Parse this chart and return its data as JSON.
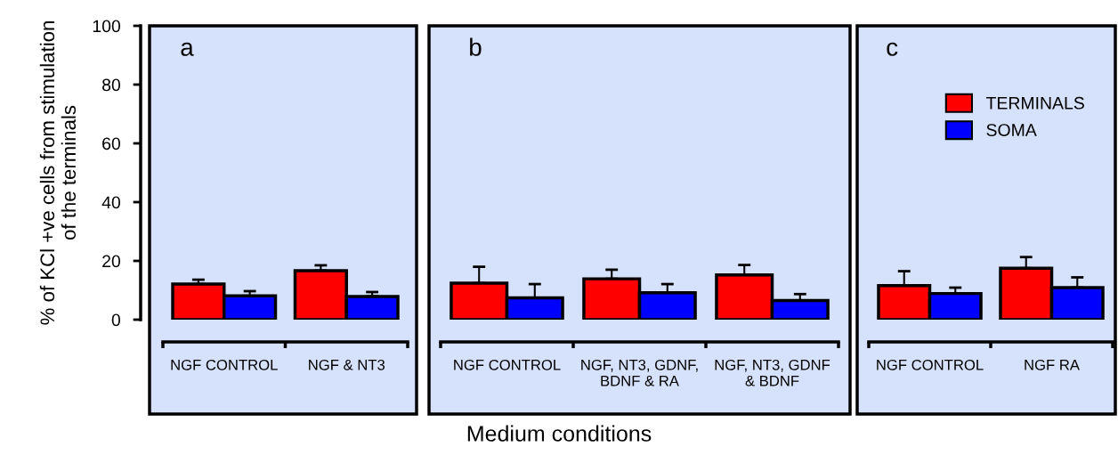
{
  "chart_data": [
    {
      "type": "bar",
      "ylabel": "% of KCl +ve cells from stimulation\nof the terminals",
      "categories": [
        "NGF CONTROL",
        "NGF & NT3"
      ],
      "ylim": [
        0,
        100
      ],
      "yticks": [
        0,
        20,
        40,
        60,
        80,
        100
      ],
      "annotations": [
        "a"
      ],
      "series": [
        {
          "color": "#ff0000",
          "values": [
            12.1,
            16.7
          ],
          "errors": [
            [
              12.1,
              13.6
            ],
            [
              16.7,
              18.5
            ]
          ]
        },
        {
          "color": "#0000ff",
          "values": [
            8.1,
            7.9
          ],
          "errors": [
            [
              8.1,
              9.7
            ],
            [
              7.9,
              9.4
            ]
          ]
        }
      ]
    },
    {
      "type": "bar",
      "xlabel": "Medium conditions",
      "categories": [
        "NGF CONTROL",
        "NGF, NT3, GDNF,\nBDNF & RA",
        "NGF, NT3, GDNF\n& BDNF"
      ],
      "ylim": [
        0,
        100
      ],
      "tick_labels": "x",
      "annotations": [
        "b"
      ],
      "series": [
        {
          "color": "#ff0000",
          "values": [
            12.4,
            13.9,
            15.2
          ],
          "errors": [
            [
              12.4,
              18.0
            ],
            [
              13.9,
              17.0
            ],
            [
              15.2,
              18.6
            ]
          ]
        },
        {
          "color": "#0000ff",
          "values": [
            7.4,
            9.2,
            6.5
          ],
          "errors": [
            [
              7.4,
              12.1
            ],
            [
              9.2,
              12.1
            ],
            [
              6.5,
              8.7
            ]
          ]
        }
      ]
    },
    {
      "type": "bar",
      "categories": [
        "NGF CONTROL",
        "NGF RA"
      ],
      "ylim": [
        0,
        100
      ],
      "tick_labels": "x",
      "annotations": [
        "c"
      ],
      "legend": "top right",
      "series": [
        {
          "name": "TERMINALS",
          "color": "#ff0000",
          "values": [
            11.6,
            17.5
          ],
          "errors": [
            [
              11.6,
              16.5
            ],
            [
              17.5,
              21.3
            ]
          ]
        },
        {
          "name": "SOMA",
          "color": "#0000ff",
          "values": [
            8.9,
            10.9
          ],
          "errors": [
            [
              8.9,
              10.9
            ],
            [
              10.9,
              14.4
            ]
          ]
        }
      ]
    }
  ]
}
